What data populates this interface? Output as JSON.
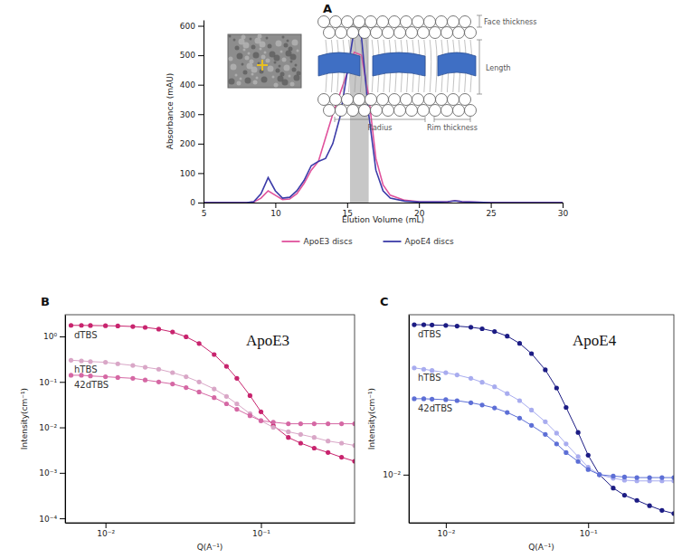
{
  "chart_data": [
    {
      "type": "line",
      "panel": "A",
      "x_label": "Elution Volume (mL)",
      "y_label": "Absorbance (mAU)",
      "x": [
        5,
        6,
        7,
        8,
        8.5,
        9,
        9.5,
        10,
        10.5,
        11,
        11.5,
        12,
        12.5,
        13,
        13.5,
        14,
        14.5,
        15,
        15.5,
        16,
        16.5,
        17,
        17.5,
        18,
        19,
        20,
        21,
        22,
        22.5,
        23,
        24,
        25,
        27,
        30
      ],
      "series": [
        {
          "name": "ApoE3 discs",
          "color": "#e0529c",
          "line_style": "solid",
          "values": [
            0,
            0,
            0,
            0,
            2,
            15,
            40,
            25,
            10,
            12,
            30,
            65,
            110,
            140,
            220,
            300,
            370,
            440,
            510,
            500,
            360,
            150,
            60,
            25,
            8,
            3,
            2,
            3,
            6,
            3,
            1,
            0,
            0,
            0
          ]
        },
        {
          "name": "ApoE4 discs",
          "color": "#3b3ba8",
          "line_style": "solid",
          "values": [
            0,
            0,
            0,
            0,
            3,
            30,
            85,
            40,
            15,
            18,
            40,
            75,
            125,
            140,
            150,
            200,
            290,
            440,
            590,
            560,
            300,
            110,
            40,
            15,
            5,
            2,
            2,
            3,
            6,
            3,
            1,
            0,
            0,
            0
          ]
        }
      ],
      "xlim": [
        5,
        30
      ],
      "xticks": [
        5,
        10,
        15,
        20,
        25,
        30
      ],
      "ylim": [
        0,
        620
      ],
      "yticks": [
        0,
        100,
        200,
        300,
        400,
        500,
        600
      ],
      "grid": false,
      "legend": "bottom",
      "shaded_region": [
        15.2,
        16.5
      ],
      "annotations": [
        "Face thickness",
        "Length",
        "Radius",
        "Rim thickness"
      ]
    },
    {
      "type": "line",
      "panel": "B",
      "title": "ApoE3",
      "x_label": "Q(A⁻¹)",
      "y_label": "Intensity(cm⁻¹)",
      "log": true,
      "x": [
        0.006,
        0.007,
        0.008,
        0.01,
        0.012,
        0.015,
        0.018,
        0.022,
        0.027,
        0.033,
        0.04,
        0.05,
        0.06,
        0.07,
        0.085,
        0.1,
        0.12,
        0.15,
        0.18,
        0.22,
        0.27,
        0.33,
        0.4
      ],
      "series": [
        {
          "name": "dTBS",
          "color": "#c8246e",
          "marker": "circle",
          "line_style": "solid",
          "values": [
            1.75,
            1.75,
            1.74,
            1.72,
            1.7,
            1.65,
            1.58,
            1.45,
            1.25,
            0.98,
            0.7,
            0.4,
            0.22,
            0.12,
            0.05,
            0.022,
            0.011,
            0.006,
            0.0045,
            0.0035,
            0.0028,
            0.0022,
            0.0018
          ]
        },
        {
          "name": "hTBS",
          "color": "#d9a7c7",
          "marker": "circle",
          "line_style": "solid",
          "values": [
            0.3,
            0.29,
            0.28,
            0.27,
            0.25,
            0.23,
            0.21,
            0.19,
            0.16,
            0.13,
            0.1,
            0.07,
            0.048,
            0.033,
            0.02,
            0.014,
            0.01,
            0.008,
            0.007,
            0.006,
            0.005,
            0.0045,
            0.004
          ]
        },
        {
          "name": "42dTBS",
          "color": "#d568a4",
          "marker": "circle",
          "line_style": "solid",
          "values": [
            0.14,
            0.14,
            0.135,
            0.13,
            0.125,
            0.12,
            0.11,
            0.1,
            0.09,
            0.075,
            0.06,
            0.045,
            0.033,
            0.025,
            0.018,
            0.014,
            0.013,
            0.012,
            0.012,
            0.012,
            0.012,
            0.012,
            0.012
          ]
        }
      ],
      "xlim": [
        0.0055,
        0.4
      ],
      "xticks": [
        {
          "value": 0.01,
          "label": "10⁻²"
        },
        {
          "value": 0.1,
          "label": "10⁻¹"
        }
      ],
      "ylim": [
        8e-05,
        3
      ],
      "yticks": [
        {
          "value": 0.0001,
          "label": "10⁻⁴"
        },
        {
          "value": 0.001,
          "label": "10⁻³"
        },
        {
          "value": 0.01,
          "label": "10⁻²"
        },
        {
          "value": 0.1,
          "label": "10⁻¹"
        },
        {
          "value": 1,
          "label": "10⁰"
        }
      ],
      "grid": false
    },
    {
      "type": "line",
      "panel": "C",
      "title": "ApoE4",
      "x_label": "Q(A⁻¹)",
      "y_label": "Intensity(cm⁻¹)",
      "log": true,
      "x": [
        0.006,
        0.007,
        0.008,
        0.01,
        0.012,
        0.015,
        0.018,
        0.022,
        0.027,
        0.033,
        0.04,
        0.05,
        0.06,
        0.07,
        0.085,
        0.1,
        0.12,
        0.15,
        0.18,
        0.22,
        0.27,
        0.33,
        0.4
      ],
      "series": [
        {
          "name": "dTBS",
          "color": "#1c1c84",
          "marker": "circle",
          "line_style": "solid",
          "values": [
            2.1,
            2.1,
            2.08,
            2.05,
            2.0,
            1.92,
            1.82,
            1.65,
            1.4,
            1.08,
            0.75,
            0.42,
            0.22,
            0.11,
            0.045,
            0.02,
            0.01,
            0.0062,
            0.0048,
            0.004,
            0.0033,
            0.0028,
            0.0025
          ]
        },
        {
          "name": "hTBS",
          "color": "#a8acef",
          "marker": "circle",
          "line_style": "solid",
          "values": [
            0.45,
            0.43,
            0.41,
            0.38,
            0.35,
            0.31,
            0.27,
            0.23,
            0.18,
            0.14,
            0.1,
            0.066,
            0.044,
            0.03,
            0.019,
            0.013,
            0.01,
            0.0088,
            0.0082,
            0.008,
            0.008,
            0.008,
            0.008
          ]
        },
        {
          "name": "42dTBS",
          "color": "#5d6fd6",
          "marker": "circle",
          "line_style": "solid",
          "values": [
            0.15,
            0.15,
            0.148,
            0.145,
            0.14,
            0.13,
            0.12,
            0.108,
            0.092,
            0.075,
            0.058,
            0.042,
            0.03,
            0.022,
            0.016,
            0.012,
            0.01,
            0.0095,
            0.0092,
            0.009,
            0.009,
            0.009,
            0.009
          ]
        }
      ],
      "xlim": [
        0.0055,
        0.4
      ],
      "xticks": [
        {
          "value": 0.01,
          "label": "10⁻²"
        },
        {
          "value": 0.1,
          "label": "10⁻¹"
        }
      ],
      "ylim": [
        0.0018,
        3
      ],
      "yticks": [
        {
          "value": 0.01,
          "label": "10⁻²"
        }
      ],
      "grid": false
    }
  ]
}
